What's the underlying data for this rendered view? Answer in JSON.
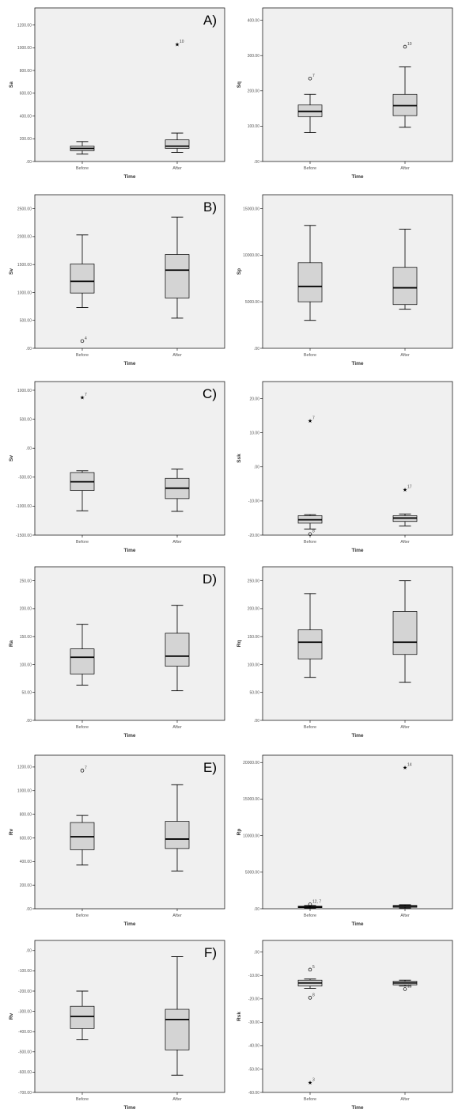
{
  "chart_data": [
    {
      "type": "box",
      "panel_label": "A)",
      "xlabel": "Time",
      "ylabel": "Sa",
      "categories": [
        "Before",
        "After"
      ],
      "yticks": [
        ".00",
        "200.00",
        "400.00",
        "600.00",
        "800.00",
        "1000.00",
        "1200.00"
      ],
      "ylim": [
        0,
        1350
      ],
      "boxes": [
        {
          "whislo": 65,
          "q1": 95,
          "med": 115,
          "q3": 135,
          "whishi": 175,
          "outliers": []
        },
        {
          "whislo": 80,
          "q1": 115,
          "med": 135,
          "q3": 190,
          "whishi": 250,
          "outliers": [
            {
              "value": 1030,
              "label": "10",
              "symbol": "star"
            }
          ]
        }
      ]
    },
    {
      "type": "box",
      "panel_label": "",
      "xlabel": "Time",
      "ylabel": "Sq",
      "categories": [
        "Before",
        "After"
      ],
      "yticks": [
        ".00",
        "100.00",
        "200.00",
        "300.00",
        "400.00"
      ],
      "ylim": [
        0,
        435
      ],
      "boxes": [
        {
          "whislo": 82,
          "q1": 127,
          "med": 142,
          "q3": 160,
          "whishi": 190,
          "outliers": [
            {
              "value": 235,
              "label": "7",
              "symbol": "circle"
            }
          ]
        },
        {
          "whislo": 97,
          "q1": 130,
          "med": 158,
          "q3": 190,
          "whishi": 268,
          "outliers": [
            {
              "value": 325,
              "label": "10",
              "symbol": "circle"
            }
          ]
        }
      ]
    },
    {
      "type": "box",
      "panel_label": "B)",
      "xlabel": "Time",
      "ylabel": "Sv",
      "categories": [
        "Before",
        "After"
      ],
      "yticks": [
        ".00",
        "500.00",
        "1000.00",
        "1500.00",
        "2000.00",
        "2500.00"
      ],
      "ylim": [
        0,
        2750
      ],
      "boxes": [
        {
          "whislo": 730,
          "q1": 990,
          "med": 1200,
          "q3": 1510,
          "whishi": 2030,
          "outliers": [
            {
              "value": 130,
              "label": "4",
              "symbol": "circle"
            }
          ]
        },
        {
          "whislo": 540,
          "q1": 900,
          "med": 1400,
          "q3": 1680,
          "whishi": 2350,
          "outliers": []
        }
      ]
    },
    {
      "type": "box",
      "panel_label": "",
      "xlabel": "Time",
      "ylabel": "Sp",
      "categories": [
        "Before",
        "After"
      ],
      "yticks": [
        ".00",
        "5000.00",
        "10000.00",
        "15000.00"
      ],
      "ylim": [
        0,
        16500
      ],
      "boxes": [
        {
          "whislo": 3000,
          "q1": 5000,
          "med": 6650,
          "q3": 9200,
          "whishi": 13200,
          "outliers": []
        },
        {
          "whislo": 4200,
          "q1": 4700,
          "med": 6500,
          "q3": 8700,
          "whishi": 12800,
          "outliers": []
        }
      ]
    },
    {
      "type": "box",
      "panel_label": "C)",
      "xlabel": "Time",
      "ylabel": "Sv",
      "categories": [
        "Before",
        "After"
      ],
      "yticks": [
        "-1500.00",
        "-1000.00",
        "-500.00",
        ".00",
        "500.00",
        "1000.00"
      ],
      "ylim": [
        -1500,
        1150
      ],
      "boxes": [
        {
          "whislo": -1080,
          "q1": -730,
          "med": -580,
          "q3": -420,
          "whishi": -390,
          "outliers": [
            {
              "value": 880,
              "label": "7",
              "symbol": "star"
            }
          ]
        },
        {
          "whislo": -1090,
          "q1": -870,
          "med": -690,
          "q3": -520,
          "whishi": -360,
          "outliers": []
        }
      ]
    },
    {
      "type": "box",
      "panel_label": "",
      "xlabel": "Time",
      "ylabel": "Ssk",
      "categories": [
        "Before",
        "After"
      ],
      "yticks": [
        "-20.00",
        "-10.00",
        ".00",
        "10.00",
        "20.00"
      ],
      "ylim": [
        -20,
        25
      ],
      "boxes": [
        {
          "whislo": -18.2,
          "q1": -16.5,
          "med": -15.5,
          "q3": -14.3,
          "whishi": -14,
          "outliers": [
            {
              "value": -19.7,
              "label": "8",
              "symbol": "circle"
            },
            {
              "value": 13.5,
              "label": "7",
              "symbol": "star"
            }
          ]
        },
        {
          "whislo": -17.3,
          "q1": -16,
          "med": -15,
          "q3": -14.3,
          "whishi": -13.8,
          "outliers": [
            {
              "value": -6.7,
              "label": "17",
              "symbol": "star"
            }
          ]
        }
      ]
    },
    {
      "type": "box",
      "panel_label": "D)",
      "xlabel": "Time",
      "ylabel": "Ra",
      "categories": [
        "Before",
        "After"
      ],
      "yticks": [
        ".00",
        "50.00",
        "100.00",
        "150.00",
        "200.00",
        "250.00"
      ],
      "ylim": [
        0,
        275
      ],
      "boxes": [
        {
          "whislo": 63,
          "q1": 83,
          "med": 113,
          "q3": 128,
          "whishi": 172,
          "outliers": []
        },
        {
          "whislo": 53,
          "q1": 97,
          "med": 115,
          "q3": 156,
          "whishi": 206,
          "outliers": []
        }
      ]
    },
    {
      "type": "box",
      "panel_label": "",
      "xlabel": "Time",
      "ylabel": "Rq",
      "categories": [
        "Before",
        "After"
      ],
      "yticks": [
        ".00",
        "50.00",
        "100.00",
        "150.00",
        "200.00",
        "250.00"
      ],
      "ylim": [
        0,
        275
      ],
      "boxes": [
        {
          "whislo": 77,
          "q1": 110,
          "med": 140,
          "q3": 162,
          "whishi": 227,
          "outliers": []
        },
        {
          "whislo": 68,
          "q1": 118,
          "med": 140,
          "q3": 195,
          "whishi": 250,
          "outliers": []
        }
      ]
    },
    {
      "type": "box",
      "panel_label": "E)",
      "xlabel": "Time",
      "ylabel": "Rv",
      "categories": [
        "Before",
        "After"
      ],
      "yticks": [
        ".00",
        "200.00",
        "400.00",
        "600.00",
        "800.00",
        "1000.00",
        "1200.00"
      ],
      "ylim": [
        0,
        1300
      ],
      "boxes": [
        {
          "whislo": 370,
          "q1": 500,
          "med": 610,
          "q3": 730,
          "whishi": 790,
          "outliers": [
            {
              "value": 1170,
              "label": "7",
              "symbol": "circle"
            }
          ]
        },
        {
          "whislo": 320,
          "q1": 510,
          "med": 590,
          "q3": 740,
          "whishi": 1050,
          "outliers": []
        }
      ]
    },
    {
      "type": "box",
      "panel_label": "",
      "xlabel": "Time",
      "ylabel": "Rp",
      "categories": [
        "Before",
        "After"
      ],
      "yticks": [
        ".00",
        "5000.00",
        "10000.00",
        "15000.00",
        "20000.00"
      ],
      "ylim": [
        0,
        21000
      ],
      "boxes": [
        {
          "whislo": 50,
          "q1": 150,
          "med": 250,
          "q3": 350,
          "whishi": 450,
          "outliers": [
            {
              "value": 600,
              "label": "12, 7",
              "symbol": "circle"
            }
          ]
        },
        {
          "whislo": 100,
          "q1": 200,
          "med": 350,
          "q3": 450,
          "whishi": 550,
          "outliers": [
            {
              "value": 19300,
              "label": "14",
              "symbol": "star"
            }
          ]
        }
      ]
    },
    {
      "type": "box",
      "panel_label": "F)",
      "xlabel": "Time",
      "ylabel": "Rv",
      "categories": [
        "Before",
        "After"
      ],
      "yticks": [
        "-700.00",
        "-600.00",
        "-500.00",
        "-400.00",
        "-300.00",
        "-200.00",
        "-100.00",
        ".00"
      ],
      "ylim": [
        -700,
        50
      ],
      "boxes": [
        {
          "whislo": -440,
          "q1": -385,
          "med": -325,
          "q3": -275,
          "whishi": -200,
          "outliers": []
        },
        {
          "whislo": -615,
          "q1": -490,
          "med": -340,
          "q3": -290,
          "whishi": -30,
          "outliers": []
        }
      ]
    },
    {
      "type": "box",
      "panel_label": "",
      "xlabel": "Time",
      "ylabel": "Rsk",
      "categories": [
        "Before",
        "After"
      ],
      "yticks": [
        "-60.00",
        "-50.00",
        "-40.00",
        "-30.00",
        "-20.00",
        "-10.00",
        ".00"
      ],
      "ylim": [
        -60,
        5
      ],
      "boxes": [
        {
          "whislo": -15.5,
          "q1": -14.5,
          "med": -13.2,
          "q3": -12,
          "whishi": -11.5,
          "outliers": [
            {
              "value": -7.5,
              "label": "5",
              "symbol": "circle"
            },
            {
              "value": -19.5,
              "label": "8",
              "symbol": "circle"
            },
            {
              "value": -55.8,
              "label": "3",
              "symbol": "star"
            }
          ]
        },
        {
          "whislo": -14.5,
          "q1": -14,
          "med": -13.2,
          "q3": -12.5,
          "whishi": -12,
          "outliers": [
            {
              "value": -15.8,
              "label": "18",
              "symbol": "circle"
            }
          ]
        }
      ]
    }
  ]
}
